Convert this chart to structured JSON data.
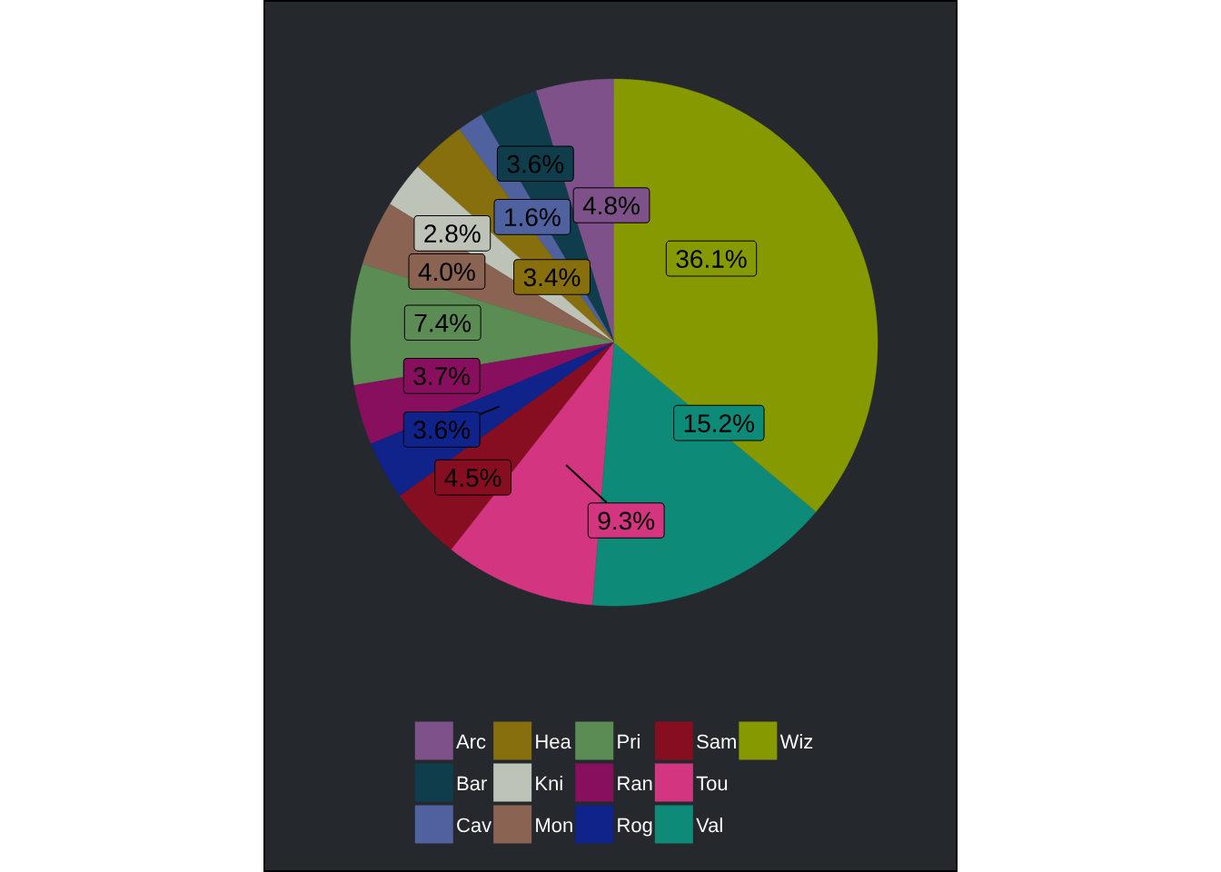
{
  "chart_data": {
    "type": "pie",
    "categories": [
      "Arc",
      "Bar",
      "Cav",
      "Hea",
      "Kni",
      "Mon",
      "Pri",
      "Ran",
      "Rog",
      "Sam",
      "Tou",
      "Val",
      "Wiz"
    ],
    "values": [
      4.8,
      3.6,
      1.6,
      3.4,
      2.8,
      4.0,
      7.4,
      3.7,
      3.6,
      4.5,
      9.3,
      15.2,
      36.1
    ],
    "colors": [
      "#7f518a",
      "#0f3d4b",
      "#5061a0",
      "#886f0d",
      "#bec3b8",
      "#8b6352",
      "#5b8c53",
      "#870f5e",
      "#0f238a",
      "#870e21",
      "#d33580",
      "#0e8a78",
      "#879900"
    ],
    "value_labels": [
      "4.8%",
      "3.6%",
      "1.6%",
      "3.4%",
      "2.8%",
      "4.0%",
      "7.4%",
      "3.7%",
      "3.6%",
      "4.5%",
      "9.3%",
      "15.2%",
      "36.1%"
    ],
    "legend": "bottom"
  }
}
